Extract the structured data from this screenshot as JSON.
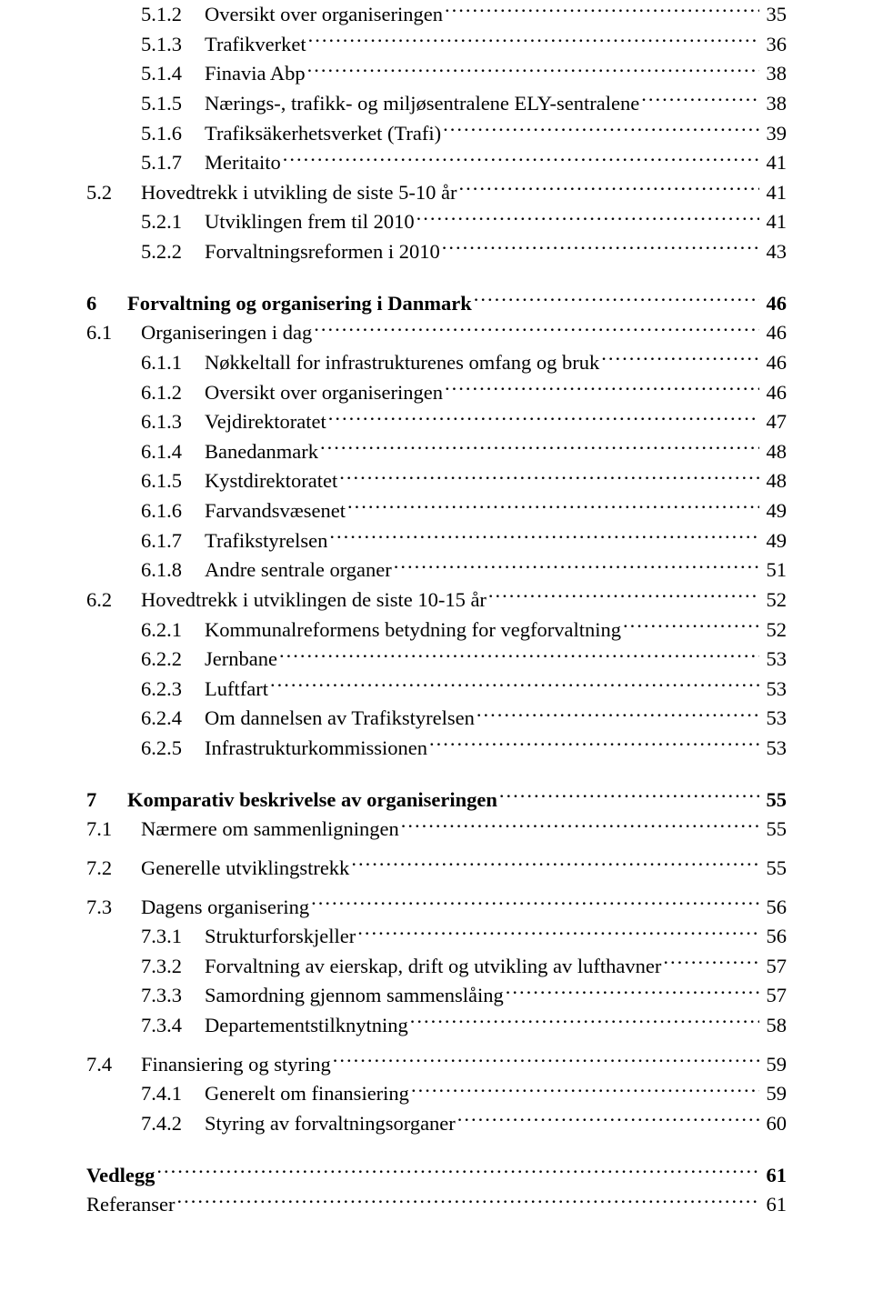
{
  "toc": [
    {
      "indent": 2,
      "num": "5.1.2",
      "title": "Oversikt over organiseringen",
      "page": "35",
      "bold": false
    },
    {
      "indent": 2,
      "num": "5.1.3",
      "title": "Trafikverket",
      "page": "36",
      "bold": false
    },
    {
      "indent": 2,
      "num": "5.1.4",
      "title": "Finavia Abp",
      "page": "38",
      "bold": false
    },
    {
      "indent": 2,
      "num": "5.1.5",
      "title": "Nærings-, trafikk- og miljøsentralene ELY-sentralene",
      "page": "38",
      "bold": false
    },
    {
      "indent": 2,
      "num": "5.1.6",
      "title": "Trafiksäkerhetsverket (Trafi)",
      "page": "39",
      "bold": false
    },
    {
      "indent": 2,
      "num": "5.1.7",
      "title": "Meritaito",
      "page": "41",
      "bold": false
    },
    {
      "indent": 1,
      "num": "5.2",
      "title": "Hovedtrekk i utvikling de siste 5-10 år",
      "page": "41",
      "bold": false
    },
    {
      "indent": 2,
      "num": "5.2.1",
      "title": "Utviklingen frem til 2010",
      "page": "41",
      "bold": false
    },
    {
      "indent": 2,
      "num": "5.2.2",
      "title": "Forvaltningsreformen i 2010",
      "page": "43",
      "bold": false
    },
    {
      "indent": 0,
      "num": "6",
      "title": "Forvaltning og organisering i Danmark",
      "page": "46",
      "bold": true,
      "gapBefore": "med"
    },
    {
      "indent": 1,
      "num": "6.1",
      "title": "Organiseringen i dag",
      "page": "46",
      "bold": false
    },
    {
      "indent": 2,
      "num": "6.1.1",
      "title": "Nøkkeltall for infrastrukturenes omfang og bruk",
      "page": "46",
      "bold": false
    },
    {
      "indent": 2,
      "num": "6.1.2",
      "title": "Oversikt over organiseringen",
      "page": "46",
      "bold": false
    },
    {
      "indent": 2,
      "num": "6.1.3",
      "title": "Vejdirektoratet",
      "page": "47",
      "bold": false
    },
    {
      "indent": 2,
      "num": "6.1.4",
      "title": "Banedanmark",
      "page": "48",
      "bold": false
    },
    {
      "indent": 2,
      "num": "6.1.5",
      "title": "Kystdirektoratet",
      "page": "48",
      "bold": false
    },
    {
      "indent": 2,
      "num": "6.1.6",
      "title": "Farvandsvæsenet",
      "page": "49",
      "bold": false
    },
    {
      "indent": 2,
      "num": "6.1.7",
      "title": "Trafikstyrelsen",
      "page": "49",
      "bold": false
    },
    {
      "indent": 2,
      "num": "6.1.8",
      "title": "Andre sentrale organer",
      "page": "51",
      "bold": false
    },
    {
      "indent": 1,
      "num": "6.2",
      "title": "Hovedtrekk i utviklingen de siste 10-15 år",
      "page": "52",
      "bold": false
    },
    {
      "indent": 2,
      "num": "6.2.1",
      "title": "Kommunalreformens betydning for vegforvaltning",
      "page": "52",
      "bold": false
    },
    {
      "indent": 2,
      "num": "6.2.2",
      "title": "Jernbane",
      "page": "53",
      "bold": false
    },
    {
      "indent": 2,
      "num": "6.2.3",
      "title": "Luftfart",
      "page": "53",
      "bold": false
    },
    {
      "indent": 2,
      "num": "6.2.4",
      "title": "Om dannelsen av Trafikstyrelsen",
      "page": "53",
      "bold": false
    },
    {
      "indent": 2,
      "num": "6.2.5",
      "title": "Infrastrukturkommissionen",
      "page": "53",
      "bold": false
    },
    {
      "indent": 0,
      "num": "7",
      "title": "Komparativ beskrivelse av organiseringen",
      "page": "55",
      "bold": true,
      "gapBefore": "med"
    },
    {
      "indent": 1,
      "num": "7.1",
      "title": "Nærmere om sammenligningen",
      "page": "55",
      "bold": false
    },
    {
      "indent": 1,
      "num": "7.2",
      "title": "Generelle utviklingstrekk",
      "page": "55",
      "bold": false,
      "gapBefore": "small"
    },
    {
      "indent": 1,
      "num": "7.3",
      "title": "Dagens organisering",
      "page": "56",
      "bold": false,
      "gapBefore": "small"
    },
    {
      "indent": 2,
      "num": "7.3.1",
      "title": "Strukturforskjeller",
      "page": "56",
      "bold": false
    },
    {
      "indent": 2,
      "num": "7.3.2",
      "title": "Forvaltning av eierskap, drift og utvikling av lufthavner",
      "page": "57",
      "bold": false
    },
    {
      "indent": 2,
      "num": "7.3.3",
      "title": "Samordning gjennom sammenslåing",
      "page": "57",
      "bold": false
    },
    {
      "indent": 2,
      "num": "7.3.4",
      "title": "Departementstilknytning",
      "page": "58",
      "bold": false
    },
    {
      "indent": 1,
      "num": "7.4",
      "title": "Finansiering og styring",
      "page": "59",
      "bold": false,
      "gapBefore": "small"
    },
    {
      "indent": 2,
      "num": "7.4.1",
      "title": "Generelt om finansiering",
      "page": "59",
      "bold": false
    },
    {
      "indent": 2,
      "num": "7.4.2",
      "title": "Styring av forvaltningsorganer",
      "page": "60",
      "bold": false
    },
    {
      "indent": 0,
      "num": "",
      "title": "Vedlegg",
      "page": "61",
      "bold": true,
      "gapBefore": "med",
      "noNum": true
    },
    {
      "indent": 0,
      "num": "",
      "title": "Referanser",
      "page": "61",
      "bold": false,
      "noNum": true
    }
  ]
}
